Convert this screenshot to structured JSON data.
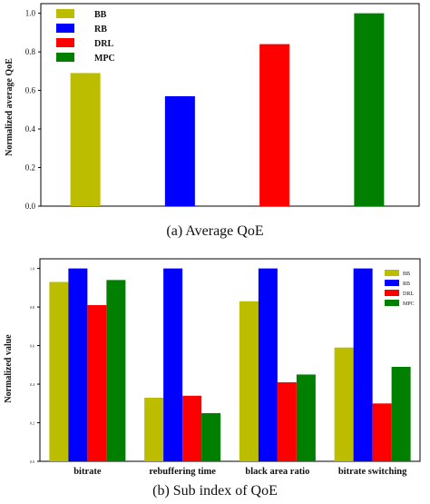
{
  "captions": {
    "a": "(a) Average QoE",
    "b": "(b) Sub index of QoE"
  },
  "chart_data": [
    {
      "type": "bar",
      "ylabel": "Normalized average QoE",
      "ylim": [
        0,
        1.05
      ],
      "yticks": [
        "0.0",
        "0.2",
        "0.4",
        "0.6",
        "0.8",
        "1.0"
      ],
      "ytick_values": [
        0,
        0.2,
        0.4,
        0.6,
        0.8,
        1.0
      ],
      "grid": false,
      "legend_position": "top-left",
      "series": [
        {
          "name": "BB",
          "value": 0.69,
          "color": "#bdbd00"
        },
        {
          "name": "RB",
          "value": 0.57,
          "color": "#0000ff"
        },
        {
          "name": "DRL",
          "value": 0.84,
          "color": "#ff0000"
        },
        {
          "name": "MPC",
          "value": 1.0,
          "color": "#007f00"
        }
      ]
    },
    {
      "type": "bar",
      "ylabel": "Normalized value",
      "ylim": [
        0,
        1.05
      ],
      "yticks": [
        "0.0",
        "0.2",
        "0.4",
        "0.6",
        "0.8",
        "1.0"
      ],
      "ytick_values": [
        0,
        0.2,
        0.4,
        0.6,
        0.8,
        1.0
      ],
      "grid": false,
      "legend_position": "top-right",
      "categories": [
        "bitrate",
        "rebuffering time",
        "black area ratio",
        "bitrate switching"
      ],
      "series": [
        {
          "name": "BB",
          "color": "#bdbd00",
          "values": [
            0.93,
            0.33,
            0.83,
            0.59
          ]
        },
        {
          "name": "RB",
          "color": "#0000ff",
          "values": [
            1.0,
            1.0,
            1.0,
            1.0
          ]
        },
        {
          "name": "DRL",
          "color": "#ff0000",
          "values": [
            0.81,
            0.34,
            0.41,
            0.3
          ]
        },
        {
          "name": "MPC",
          "color": "#007f00",
          "values": [
            0.94,
            0.25,
            0.45,
            0.49
          ]
        }
      ]
    }
  ]
}
